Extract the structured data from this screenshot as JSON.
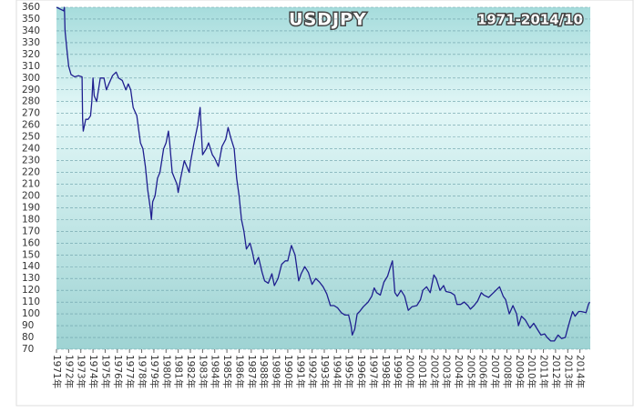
{
  "chart_data": {
    "type": "line",
    "title": "USDJPY",
    "subtitle": "1971-2014/10",
    "x": [
      1971.0,
      1971.6,
      1971.65,
      1971.7,
      1971.9,
      1972.0,
      1972.2,
      1972.5,
      1972.8,
      1973.1,
      1973.15,
      1973.2,
      1973.4,
      1973.6,
      1973.8,
      1973.9,
      1974.0,
      1974.1,
      1974.3,
      1974.6,
      1974.9,
      1975.1,
      1975.3,
      1975.6,
      1975.9,
      1976.1,
      1976.4,
      1976.7,
      1976.9,
      1977.1,
      1977.3,
      1977.6,
      1977.9,
      1978.1,
      1978.3,
      1978.5,
      1978.7,
      1978.8,
      1978.9,
      1979.1,
      1979.3,
      1979.5,
      1979.8,
      1980.0,
      1980.2,
      1980.3,
      1980.5,
      1980.7,
      1980.9,
      1981.0,
      1981.2,
      1981.5,
      1981.7,
      1981.9,
      1982.0,
      1982.3,
      1982.6,
      1982.8,
      1982.9,
      1983.0,
      1983.3,
      1983.5,
      1983.8,
      1984.0,
      1984.3,
      1984.6,
      1984.9,
      1985.1,
      1985.3,
      1985.6,
      1985.8,
      1986.0,
      1986.2,
      1986.4,
      1986.6,
      1986.9,
      1987.1,
      1987.3,
      1987.6,
      1987.9,
      1988.1,
      1988.4,
      1988.7,
      1988.9,
      1989.2,
      1989.5,
      1989.8,
      1990.0,
      1990.3,
      1990.6,
      1990.9,
      1991.1,
      1991.4,
      1991.7,
      1992.0,
      1992.3,
      1992.6,
      1992.9,
      1993.2,
      1993.5,
      1993.8,
      1994.1,
      1994.4,
      1994.7,
      1995.0,
      1995.2,
      1995.3,
      1995.5,
      1995.7,
      1995.9,
      1996.2,
      1996.6,
      1996.9,
      1997.1,
      1997.3,
      1997.6,
      1997.9,
      1998.2,
      1998.5,
      1998.6,
      1998.8,
      1999.0,
      1999.3,
      1999.6,
      1999.9,
      2000.2,
      2000.6,
      2000.9,
      2001.1,
      2001.4,
      2001.7,
      2002.0,
      2002.2,
      2002.5,
      2002.8,
      2003.0,
      2003.4,
      2003.7,
      2003.9,
      2004.2,
      2004.5,
      2004.8,
      2005.0,
      2005.3,
      2005.6,
      2005.9,
      2006.1,
      2006.5,
      2006.9,
      2007.4,
      2007.7,
      2007.9,
      2008.2,
      2008.5,
      2008.8,
      2008.95,
      2009.2,
      2009.5,
      2009.9,
      2010.2,
      2010.5,
      2010.8,
      2011.1,
      2011.3,
      2011.6,
      2011.9,
      2012.2,
      2012.5,
      2012.8,
      2012.95,
      2013.2,
      2013.4,
      2013.6,
      2013.9,
      2014.1,
      2014.5,
      2014.7,
      2014.8
    ],
    "series": [
      {
        "name": "USDJPY",
        "color": "#1f1f8f",
        "values": [
          360,
          357,
          360,
          340,
          320,
          310,
          303,
          301,
          302,
          301,
          265,
          255,
          265,
          265,
          268,
          280,
          300,
          285,
          280,
          300,
          300,
          290,
          295,
          302,
          305,
          300,
          298,
          290,
          295,
          290,
          275,
          268,
          245,
          240,
          225,
          205,
          190,
          180,
          195,
          200,
          215,
          220,
          240,
          245,
          255,
          245,
          220,
          215,
          210,
          203,
          215,
          230,
          225,
          220,
          228,
          245,
          260,
          275,
          255,
          235,
          240,
          245,
          235,
          232,
          225,
          242,
          248,
          258,
          250,
          240,
          215,
          200,
          180,
          170,
          155,
          160,
          152,
          142,
          148,
          135,
          128,
          126,
          134,
          124,
          130,
          142,
          145,
          145,
          158,
          150,
          128,
          134,
          140,
          135,
          125,
          130,
          127,
          123,
          117,
          107,
          107,
          105,
          101,
          99,
          99,
          90,
          82,
          87,
          100,
          102,
          106,
          110,
          115,
          122,
          118,
          116,
          127,
          132,
          142,
          145,
          118,
          115,
          120,
          115,
          103,
          106,
          107,
          112,
          120,
          123,
          118,
          133,
          130,
          120,
          124,
          119,
          118,
          116,
          108,
          108,
          110,
          107,
          104,
          107,
          111,
          118,
          116,
          114,
          118,
          123,
          115,
          112,
          100,
          107,
          100,
          90,
          98,
          95,
          88,
          92,
          87,
          82,
          83,
          80,
          77,
          77,
          82,
          79,
          80,
          86,
          95,
          102,
          98,
          102,
          102,
          101,
          108,
          110
        ]
      }
    ],
    "xlim": [
      1971,
      2014.85
    ],
    "xticks": [
      {
        "value": 1971,
        "label": "1971年"
      },
      {
        "value": 1972,
        "label": "1972年"
      },
      {
        "value": 1973,
        "label": "1973年"
      },
      {
        "value": 1974,
        "label": "1974年"
      },
      {
        "value": 1975,
        "label": "1975年"
      },
      {
        "value": 1976,
        "label": "1976年"
      },
      {
        "value": 1977,
        "label": "1977年"
      },
      {
        "value": 1978,
        "label": "1978年"
      },
      {
        "value": 1979,
        "label": "1979年"
      },
      {
        "value": 1980,
        "label": "1980年"
      },
      {
        "value": 1981,
        "label": "1981年"
      },
      {
        "value": 1982,
        "label": "1982年"
      },
      {
        "value": 1983,
        "label": "1983年"
      },
      {
        "value": 1984,
        "label": "1984年"
      },
      {
        "value": 1985,
        "label": "1985年"
      },
      {
        "value": 1986,
        "label": "1986年"
      },
      {
        "value": 1987,
        "label": "1987年"
      },
      {
        "value": 1988,
        "label": "1988年"
      },
      {
        "value": 1989,
        "label": "1989年"
      },
      {
        "value": 1990,
        "label": "1990年"
      },
      {
        "value": 1991,
        "label": "1991年"
      },
      {
        "value": 1992,
        "label": "1992年"
      },
      {
        "value": 1993,
        "label": "1993年"
      },
      {
        "value": 1994,
        "label": "1994年"
      },
      {
        "value": 1995,
        "label": "1995年"
      },
      {
        "value": 1996,
        "label": "1996年"
      },
      {
        "value": 1997,
        "label": "1997年"
      },
      {
        "value": 1998,
        "label": "1998年"
      },
      {
        "value": 1999,
        "label": "1999年"
      },
      {
        "value": 2000,
        "label": "2000年"
      },
      {
        "value": 2001,
        "label": "2001年"
      },
      {
        "value": 2002,
        "label": "2002年"
      },
      {
        "value": 2003,
        "label": "2003年"
      },
      {
        "value": 2004,
        "label": "2004年"
      },
      {
        "value": 2005,
        "label": "2005年"
      },
      {
        "value": 2006,
        "label": "2006年"
      },
      {
        "value": 2007,
        "label": "2007年"
      },
      {
        "value": 2008,
        "label": "2008年"
      },
      {
        "value": 2009,
        "label": "2009年"
      },
      {
        "value": 2010,
        "label": "2010年"
      },
      {
        "value": 2011,
        "label": "2011年"
      },
      {
        "value": 2012,
        "label": "2012年"
      },
      {
        "value": 2013,
        "label": "2013年"
      },
      {
        "value": 2014,
        "label": "2014年"
      }
    ],
    "ylim": [
      70,
      360
    ],
    "yticks": [
      70,
      80,
      90,
      100,
      110,
      120,
      130,
      140,
      150,
      160,
      170,
      180,
      190,
      200,
      210,
      220,
      230,
      240,
      250,
      260,
      270,
      280,
      290,
      300,
      310,
      320,
      330,
      340,
      350,
      360
    ],
    "grid": true
  }
}
